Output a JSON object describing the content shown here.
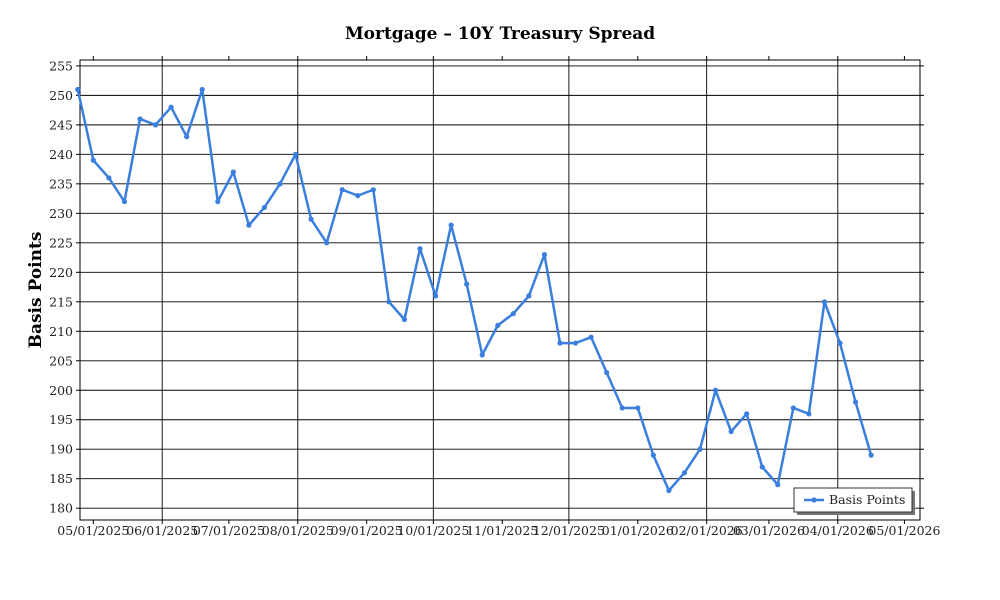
{
  "chart_data": {
    "type": "line",
    "title": "Mortgage – 10Y Treasury Spread",
    "xlabel": "",
    "ylabel": "Basis Points",
    "ylim": [
      178,
      256
    ],
    "yticks": [
      180,
      185,
      190,
      195,
      200,
      205,
      210,
      215,
      220,
      225,
      230,
      235,
      240,
      245,
      250,
      255
    ],
    "xlim": [
      "2025-04-25",
      "2026-05-08"
    ],
    "xticks": [
      {
        "date": "2025-05-01",
        "label": "05/01/2025"
      },
      {
        "date": "2025-06-01",
        "label": "06/01/2025"
      },
      {
        "date": "2025-07-01",
        "label": "07/01/2025"
      },
      {
        "date": "2025-08-01",
        "label": "08/01/2025"
      },
      {
        "date": "2025-09-01",
        "label": "09/01/2025"
      },
      {
        "date": "2025-10-01",
        "label": "10/01/2025"
      },
      {
        "date": "2025-11-01",
        "label": "11/01/2025"
      },
      {
        "date": "2025-12-01",
        "label": "12/01/2025"
      },
      {
        "date": "2026-01-01",
        "label": "01/01/2026"
      },
      {
        "date": "2026-02-01",
        "label": "02/01/2026"
      },
      {
        "date": "2026-03-01",
        "label": "03/01/2026"
      },
      {
        "date": "2026-04-01",
        "label": "04/01/2026"
      },
      {
        "date": "2026-05-01",
        "label": "05/01/2026"
      }
    ],
    "grid": true,
    "legend_position": "bottom-right",
    "series": [
      {
        "name": "Basis Points",
        "color": "#3a7fde",
        "x": [
          "2025-04-24",
          "2025-05-01",
          "2025-05-08",
          "2025-05-15",
          "2025-05-22",
          "2025-05-29",
          "2025-06-05",
          "2025-06-12",
          "2025-06-19",
          "2025-06-26",
          "2025-07-03",
          "2025-07-10",
          "2025-07-17",
          "2025-07-24",
          "2025-07-31",
          "2025-08-07",
          "2025-08-14",
          "2025-08-21",
          "2025-08-28",
          "2025-09-04",
          "2025-09-11",
          "2025-09-18",
          "2025-09-25",
          "2025-10-02",
          "2025-10-09",
          "2025-10-16",
          "2025-10-23",
          "2025-10-30",
          "2025-11-06",
          "2025-11-13",
          "2025-11-20",
          "2025-11-27",
          "2025-12-04",
          "2025-12-11",
          "2025-12-18",
          "2025-12-25",
          "2026-01-01",
          "2026-01-08",
          "2026-01-15",
          "2026-01-22",
          "2026-01-29",
          "2026-02-05",
          "2026-02-12",
          "2026-02-19",
          "2026-02-26",
          "2026-03-05",
          "2026-03-12",
          "2026-03-19",
          "2026-03-26",
          "2026-04-02",
          "2026-04-09",
          "2026-04-16"
        ],
        "y": [
          251,
          239,
          236,
          232,
          246,
          245,
          248,
          243,
          251,
          232,
          237,
          228,
          231,
          235,
          240,
          229,
          225,
          234,
          233,
          234,
          215,
          212,
          224,
          216,
          228,
          218,
          206,
          211,
          213,
          216,
          223,
          208,
          208,
          209,
          203,
          197,
          197,
          189,
          183,
          186,
          190,
          200,
          193,
          196,
          187,
          184,
          197,
          196,
          215,
          208,
          198,
          189
        ]
      }
    ]
  }
}
